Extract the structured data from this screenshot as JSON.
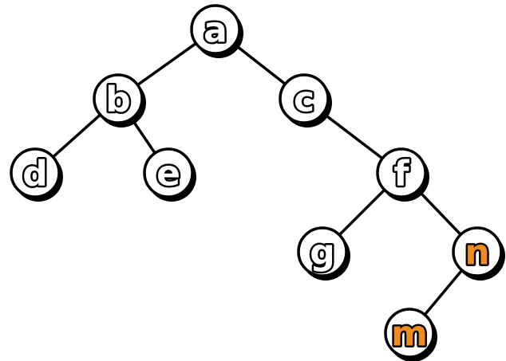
{
  "tree": {
    "nodes": [
      {
        "id": "a",
        "label": "a",
        "highlighted": false
      },
      {
        "id": "b",
        "label": "b",
        "highlighted": false
      },
      {
        "id": "c",
        "label": "c",
        "highlighted": false
      },
      {
        "id": "d",
        "label": "d",
        "highlighted": false
      },
      {
        "id": "e",
        "label": "e",
        "highlighted": false
      },
      {
        "id": "f",
        "label": "f",
        "highlighted": false
      },
      {
        "id": "g",
        "label": "g",
        "highlighted": false
      },
      {
        "id": "n",
        "label": "n",
        "highlighted": true
      },
      {
        "id": "m",
        "label": "m",
        "highlighted": true
      }
    ],
    "edges": [
      {
        "from": "a",
        "to": "b"
      },
      {
        "from": "a",
        "to": "c"
      },
      {
        "from": "b",
        "to": "d"
      },
      {
        "from": "b",
        "to": "e"
      },
      {
        "from": "c",
        "to": "f"
      },
      {
        "from": "f",
        "to": "g"
      },
      {
        "from": "f",
        "to": "n"
      },
      {
        "from": "n",
        "to": "m"
      }
    ]
  },
  "colors": {
    "label_default": "#ffffff",
    "label_highlight": "#f08c1e",
    "node_fill": "#ffffff",
    "outline": "#000000"
  }
}
